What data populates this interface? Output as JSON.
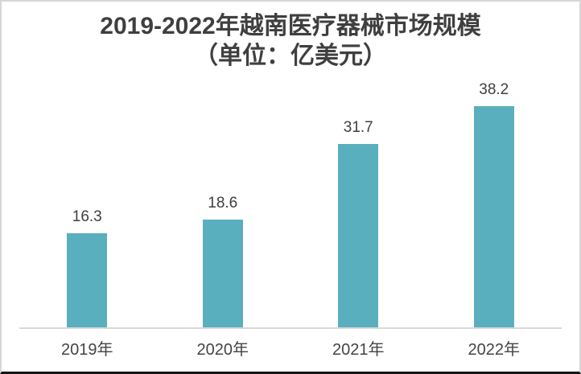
{
  "title": {
    "line1": "2019-2022年越南医疗器械市场规模",
    "line2": "（单位：亿美元）"
  },
  "colors": {
    "bar_fill": "#5AAFBF",
    "title_text": "#3F3F3F",
    "data_label_text": "#3F3F3F",
    "tick_label_text": "#444444",
    "axis_line": "#D9D9D9",
    "frame_border": "#D7D7D7",
    "frame_bottom_border": "#161616",
    "background": "#FFFFFF"
  },
  "chart_data": {
    "type": "bar",
    "title": "2019-2022年越南医疗器械市场规模（单位：亿美元）",
    "categories": [
      "2019年",
      "2020年",
      "2021年",
      "2022年"
    ],
    "values": [
      16.3,
      18.6,
      31.7,
      38.2
    ],
    "data_labels": [
      "16.3",
      "18.6",
      "31.7",
      "38.2"
    ],
    "xlabel": "",
    "ylabel": "",
    "ylim": [
      0,
      42
    ],
    "grid": false,
    "legend": "none",
    "y_axis_visible": false,
    "x_axis_line_visible": true
  }
}
